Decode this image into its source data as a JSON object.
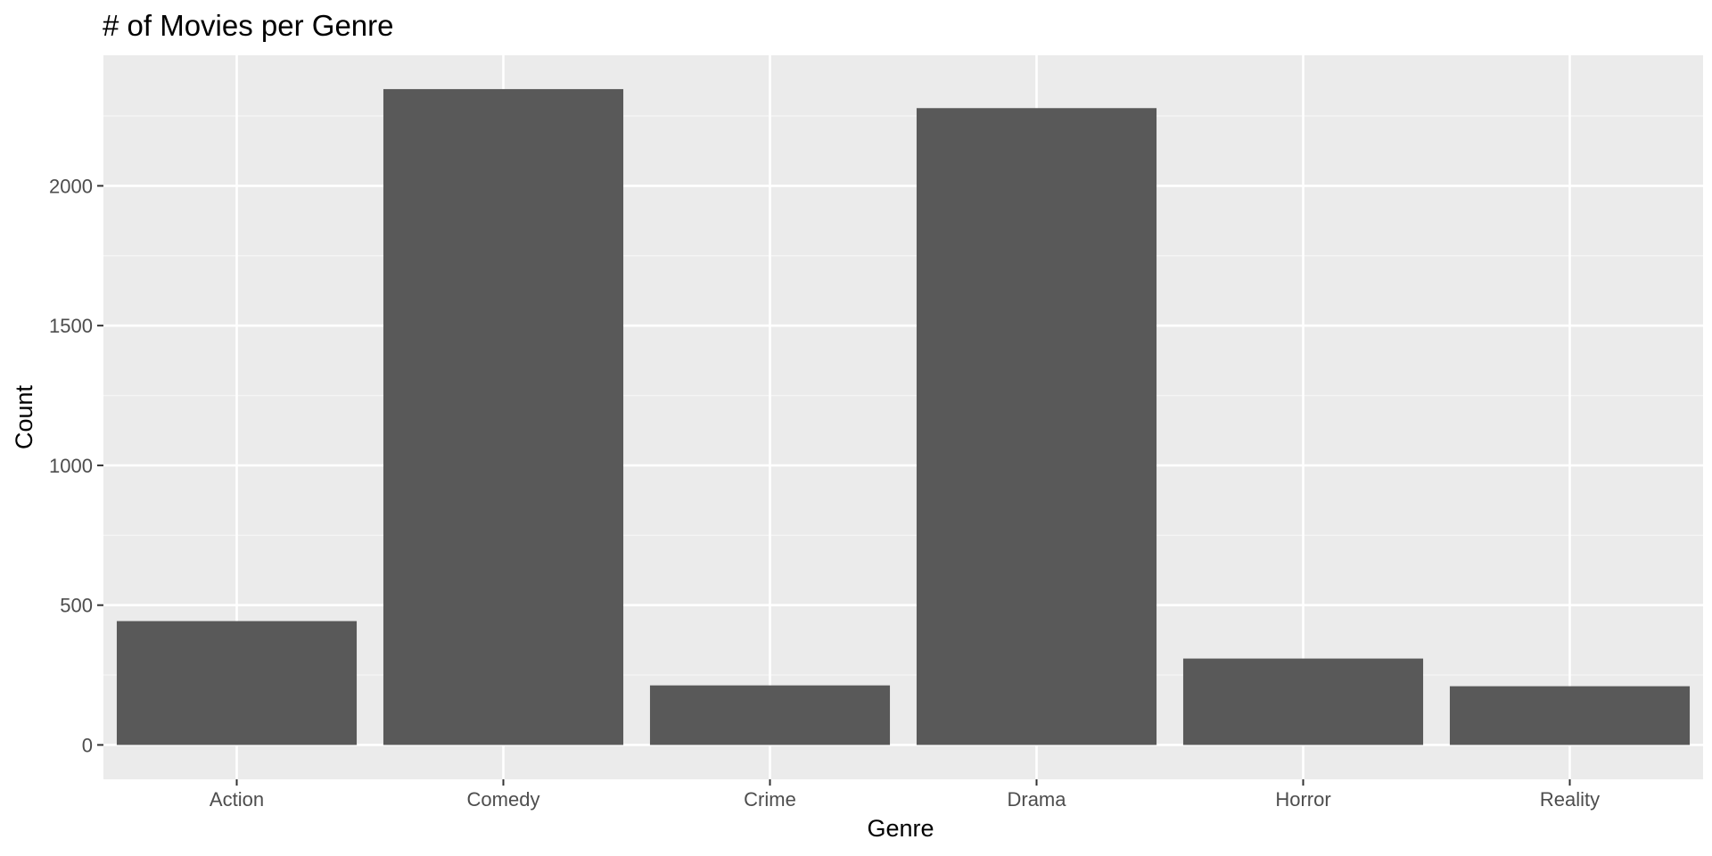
{
  "chart_data": {
    "type": "bar",
    "title": "# of Movies per Genre",
    "xlabel": "Genre",
    "ylabel": "Count",
    "categories": [
      "Action",
      "Comedy",
      "Crime",
      "Drama",
      "Horror",
      "Reality"
    ],
    "values": [
      443,
      2346,
      213,
      2278,
      309,
      210
    ],
    "ylim": [
      -123,
      2467
    ],
    "yticks": [
      0,
      500,
      1000,
      1500,
      2000
    ],
    "grid": true,
    "legend": "none"
  },
  "colors": {
    "panel_background": "#ebebeb",
    "grid_major": "#ffffff",
    "grid_minor": "#f5f5f5",
    "bar_fill": "#595959",
    "tick_mark": "#333333",
    "tick_text": "#4d4d4d",
    "title_text": "#000000"
  }
}
